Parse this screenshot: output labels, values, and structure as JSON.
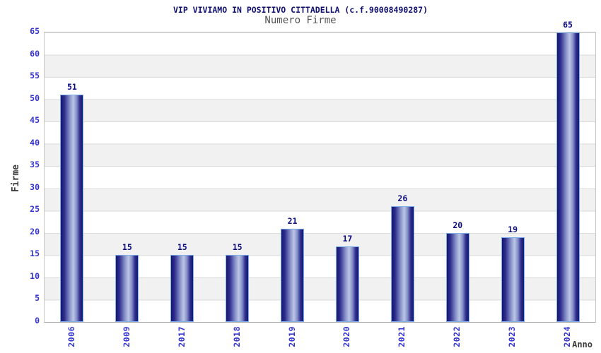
{
  "chart_data": {
    "type": "bar",
    "title": "VIP VIVIAMO IN POSITIVO CITTADELLA (c.f.90008490287)",
    "subtitle": "Numero Firme",
    "xlabel": "Anno",
    "ylabel": "Firme",
    "categories": [
      "2006",
      "2009",
      "2017",
      "2018",
      "2019",
      "2020",
      "2021",
      "2022",
      "2023",
      "2024"
    ],
    "values": [
      51,
      15,
      15,
      15,
      21,
      17,
      26,
      20,
      19,
      65
    ],
    "ylim": [
      0,
      65
    ],
    "ytick_step": 5,
    "yticks": [
      0,
      5,
      10,
      15,
      20,
      25,
      30,
      35,
      40,
      45,
      50,
      55,
      60,
      65
    ],
    "grid": "horizontal gridlines with alternating white/gray bands",
    "legend_position": "none",
    "value_labels": "above each bar"
  },
  "colors": {
    "background": "#ffffff",
    "title_text": "#0f0f6e",
    "subtitle_text": "#545454",
    "axis_title_text": "#3b3b3b",
    "tick_text": "#3333cf",
    "value_text": "#0d0d80",
    "bar_edge": "#7db0ea",
    "bar_dark": "#17176d",
    "bar_dark2": "#2d2d8f",
    "bar_mid": "#8690c8",
    "bar_light": "#bcc6e6",
    "band_white": "#ffffff",
    "band_gray": "#f1f1f1",
    "gridline": "#dadada",
    "plot_border": "#c8c8c8",
    "axis_line": "#a6a6a6"
  }
}
